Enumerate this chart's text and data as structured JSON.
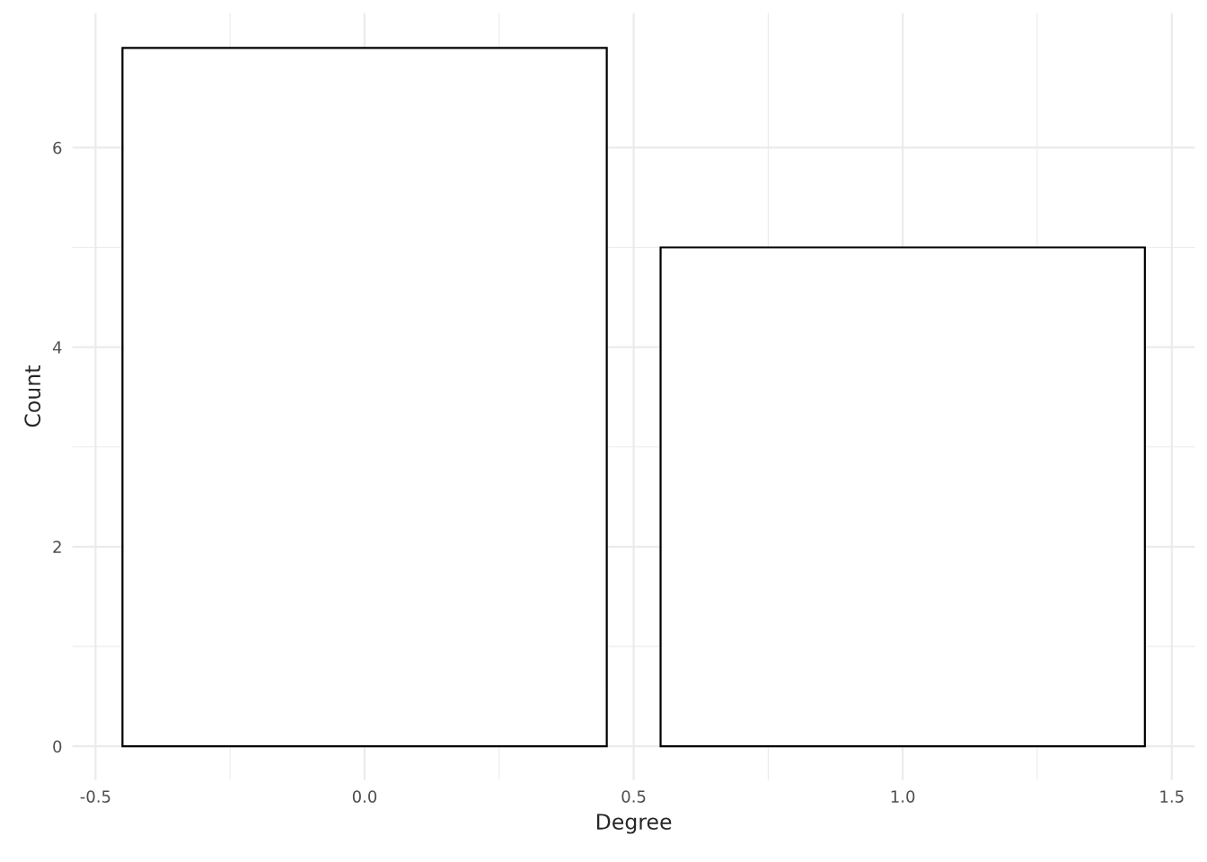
{
  "chart_data": {
    "type": "bar",
    "xlabel": "Degree",
    "ylabel": "Count",
    "x": [
      0,
      1
    ],
    "values": [
      7,
      5
    ],
    "color": "#ffffff",
    "xlim": [
      -0.543,
      1.543
    ],
    "xticks": [
      -0.5,
      {
        "value": 0,
        "label": "0.0"
      },
      0.5,
      {
        "value": 1,
        "label": "1.0"
      },
      1.5
    ],
    "ylim": [
      -0.34,
      7.35
    ],
    "yticks": [
      0,
      2,
      4,
      6
    ],
    "grid": true
  }
}
